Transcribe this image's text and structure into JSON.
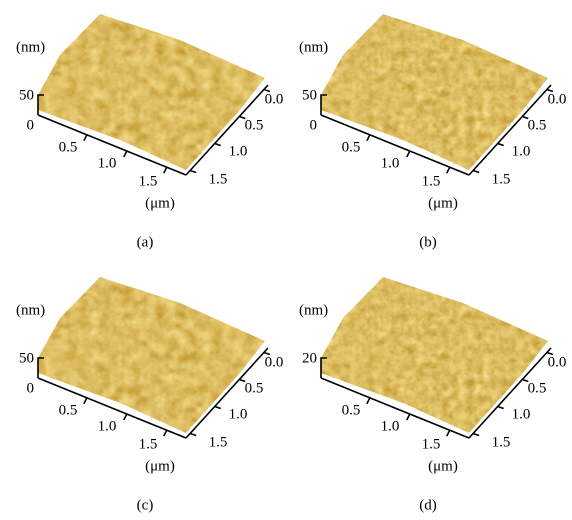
{
  "panels": [
    {
      "caption": "(a)",
      "z_unit": "(nm)",
      "z_ticks": [
        "50",
        "0"
      ],
      "x_ticks": [
        "0.5",
        "1.0",
        "1.5"
      ],
      "x_unit": "(μm)",
      "y_ticks": [
        "0.0",
        "0.5",
        "1.0",
        "1.5"
      ]
    },
    {
      "caption": "(b)",
      "z_unit": "(nm)",
      "z_ticks": [
        "50",
        "0"
      ],
      "x_ticks": [
        "0.5",
        "1.0",
        "1.5"
      ],
      "x_unit": "(μm)",
      "y_ticks": [
        "0.0",
        "0.5",
        "1.0",
        "1.5"
      ]
    },
    {
      "caption": "(c)",
      "z_unit": "(nm)",
      "z_ticks": [
        "50",
        "0"
      ],
      "x_ticks": [
        "0.5",
        "1.0",
        "1.5"
      ],
      "x_unit": "(μm)",
      "y_ticks": [
        "0.0",
        "0.5",
        "1.0",
        "1.5"
      ]
    },
    {
      "caption": "(d)",
      "z_unit": "(nm)",
      "z_ticks": [
        "20"
      ],
      "x_ticks": [
        "0.5",
        "1.0",
        "1.5"
      ],
      "x_unit": "(μm)",
      "y_ticks": [
        "0.0",
        "0.5",
        "1.0",
        "1.5"
      ]
    }
  ]
}
